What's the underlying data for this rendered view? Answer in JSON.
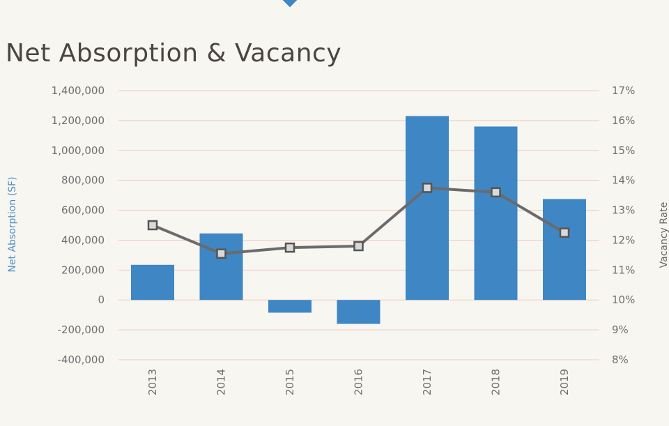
{
  "title": "Net Absorption & Vacancy",
  "colors": {
    "bar": "#3f86c4",
    "line": "#6b6b6b",
    "marker_fill": "#d9d9d9",
    "marker_stroke": "#555555",
    "grid": "#f0c9c0",
    "top_marker": "#3f86c4"
  },
  "chart_data": {
    "type": "bar",
    "categories": [
      "2013",
      "2014",
      "2015",
      "2016",
      "2017",
      "2018",
      "2019"
    ],
    "series": [
      {
        "type": "bar",
        "axis": "left",
        "values": [
          235000,
          445000,
          -85000,
          -160000,
          1230000,
          1160000,
          675000
        ]
      },
      {
        "type": "line",
        "axis": "right",
        "values": [
          12.5,
          11.55,
          11.75,
          11.8,
          13.75,
          13.6,
          12.25
        ]
      }
    ],
    "ylabel": "Net Absorption (SF)",
    "ylabel_right": "Vacancy Rate",
    "ylim": [
      -400000,
      1400000
    ],
    "yticks": [
      -400000,
      -200000,
      0,
      200000,
      400000,
      600000,
      800000,
      1000000,
      1200000,
      1400000
    ],
    "ytick_labels": [
      "-400,000",
      "-200,000",
      "0",
      "200,000",
      "400,000",
      "600,000",
      "800,000",
      "1,000,000",
      "1,200,000",
      "1,400,000"
    ],
    "ylim_right": [
      8,
      17
    ],
    "yticks_right": [
      8,
      9,
      10,
      11,
      12,
      13,
      14,
      15,
      16,
      17
    ],
    "ytick_labels_right": [
      "8%",
      "9%",
      "10%",
      "11%",
      "12%",
      "13%",
      "14%",
      "15%",
      "16%",
      "17%"
    ],
    "grid": true
  }
}
